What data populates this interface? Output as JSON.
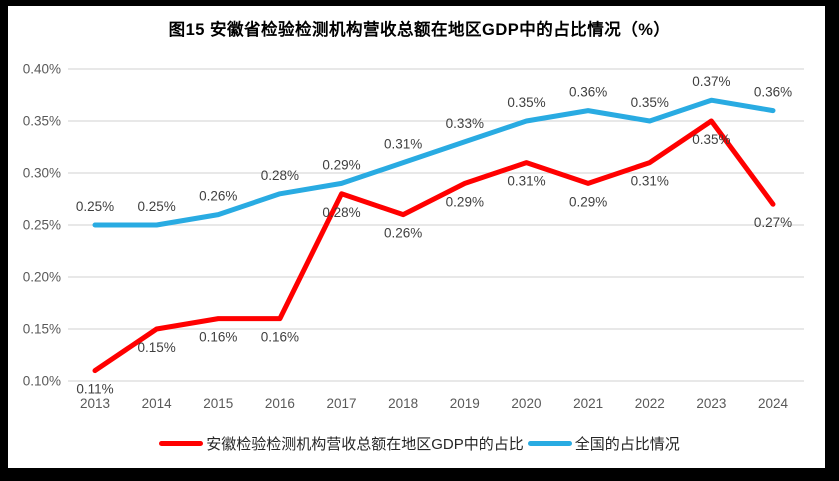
{
  "chart_data": {
    "type": "line",
    "title": "图15 安徽省检验检测机构营收总额在地区GDP中的占比情况（%）",
    "categories": [
      "2013",
      "2014",
      "2015",
      "2016",
      "2017",
      "2018",
      "2019",
      "2020",
      "2021",
      "2022",
      "2023",
      "2024"
    ],
    "series": [
      {
        "name": "安徽检验检测机构营收总额在地区GDP中的占比",
        "color": "#FF0000",
        "values": [
          0.11,
          0.15,
          0.16,
          0.16,
          0.28,
          0.26,
          0.29,
          0.31,
          0.29,
          0.31,
          0.35,
          0.27
        ],
        "labels": [
          "0.11%",
          "0.15%",
          "0.16%",
          "0.16%",
          "0.28%",
          "0.26%",
          "0.29%",
          "0.31%",
          "0.29%",
          "0.31%",
          "0.35%",
          "0.27%"
        ],
        "label_position": "below"
      },
      {
        "name": "全国的占比情况",
        "color": "#29ABE2",
        "values": [
          0.25,
          0.25,
          0.26,
          0.28,
          0.29,
          0.31,
          0.33,
          0.35,
          0.36,
          0.35,
          0.37,
          0.36
        ],
        "labels": [
          "0.25%",
          "0.25%",
          "0.26%",
          "0.28%",
          "0.29%",
          "0.31%",
          "0.33%",
          "0.35%",
          "0.36%",
          "0.35%",
          "0.37%",
          "0.36%"
        ],
        "label_position": "above"
      }
    ],
    "y_axis": {
      "tick_labels": [
        "0.40%",
        "0.35%",
        "0.30%",
        "0.25%",
        "0.20%",
        "0.15%",
        "0.10%"
      ],
      "tick_values": [
        0.4,
        0.35,
        0.3,
        0.25,
        0.2,
        0.15,
        0.1
      ],
      "min": 0.1,
      "max": 0.4
    },
    "grid": true,
    "legend_position": "bottom",
    "styles": {
      "gridline_color": "#D9D9D9",
      "tick_label_color": "#595959",
      "data_label_color": "#3F3F3F",
      "frame_color": "#000000",
      "background_color": "#FFFFFF",
      "line_width": 5
    }
  }
}
